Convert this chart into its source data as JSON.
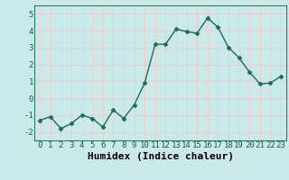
{
  "x": [
    0,
    1,
    2,
    3,
    4,
    5,
    6,
    7,
    8,
    9,
    10,
    11,
    12,
    13,
    14,
    15,
    16,
    17,
    18,
    19,
    20,
    21,
    22,
    23
  ],
  "y": [
    -1.3,
    -1.1,
    -1.8,
    -1.5,
    -1.0,
    -1.2,
    -1.7,
    -0.7,
    -1.2,
    -0.4,
    0.9,
    3.2,
    3.2,
    4.1,
    3.95,
    3.85,
    4.75,
    4.2,
    3.0,
    2.4,
    1.55,
    0.85,
    0.9,
    1.3
  ],
  "line_color": "#1a6b5a",
  "marker": "D",
  "markersize": 2.5,
  "linewidth": 1.0,
  "bg_color": "#cce9e9",
  "grid_color": "#e8d0d0",
  "xlabel": "Humidex (Indice chaleur)",
  "ylim": [
    -2.5,
    5.5
  ],
  "xlim": [
    -0.5,
    23.5
  ],
  "yticks": [
    -2,
    -1,
    0,
    1,
    2,
    3,
    4,
    5
  ],
  "xticks": [
    0,
    1,
    2,
    3,
    4,
    5,
    6,
    7,
    8,
    9,
    10,
    11,
    12,
    13,
    14,
    15,
    16,
    17,
    18,
    19,
    20,
    21,
    22,
    23
  ],
  "xlabel_fontsize": 8,
  "tick_fontsize": 6.5
}
